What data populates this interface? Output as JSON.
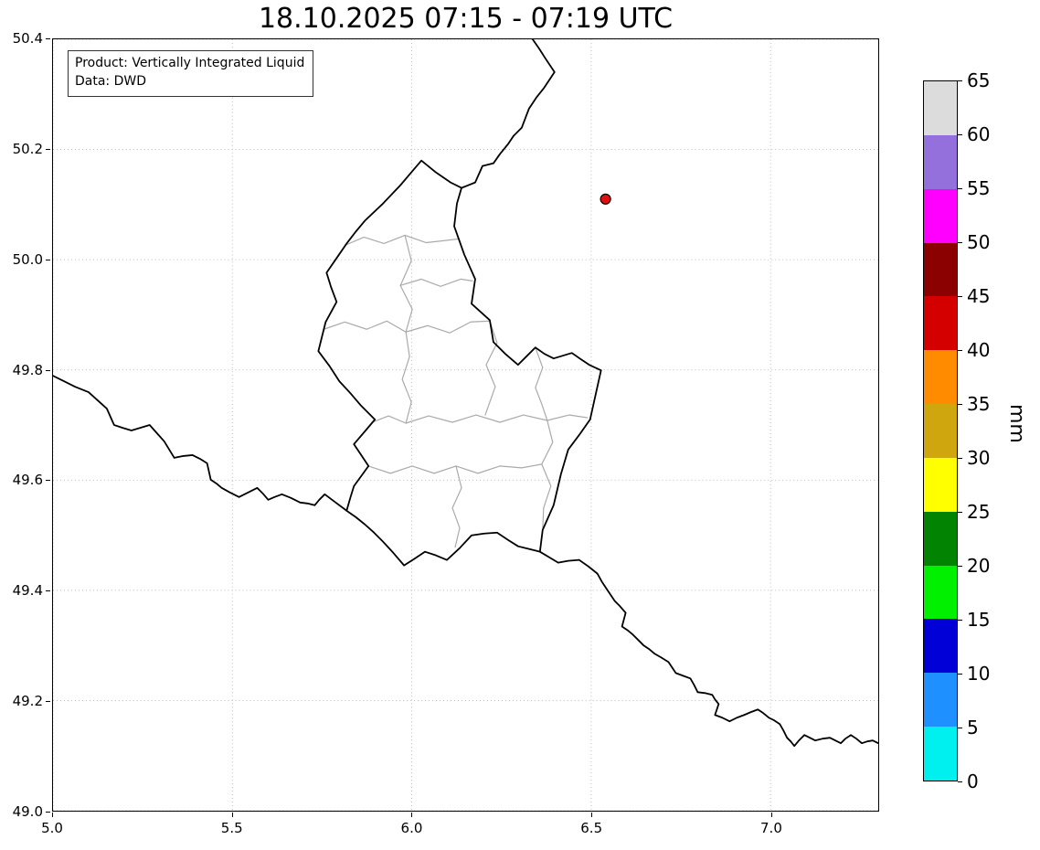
{
  "title": "18.10.2025 07:15 - 07:19 UTC",
  "annotation": {
    "line1": "Product: Vertically Integrated Liquid",
    "line2": "Data: DWD"
  },
  "axes": {
    "xlim": [
      5.0,
      7.3
    ],
    "ylim": [
      49.0,
      50.4
    ],
    "x_ticks": [
      {
        "value": 5.0,
        "label": "5.0"
      },
      {
        "value": 5.5,
        "label": "5.5"
      },
      {
        "value": 6.0,
        "label": "6.0"
      },
      {
        "value": 6.5,
        "label": "6.5"
      },
      {
        "value": 7.0,
        "label": "7.0"
      }
    ],
    "y_ticks": [
      {
        "value": 50.4,
        "label": "50.4"
      },
      {
        "value": 50.2,
        "label": "50.2"
      },
      {
        "value": 50.0,
        "label": "50.0"
      },
      {
        "value": 49.8,
        "label": "49.8"
      },
      {
        "value": 49.6,
        "label": "49.6"
      },
      {
        "value": 49.4,
        "label": "49.4"
      },
      {
        "value": 49.2,
        "label": "49.2"
      },
      {
        "value": 49.0,
        "label": "49.0"
      }
    ]
  },
  "marker": {
    "lon": 6.54,
    "lat": 50.11,
    "color": "#e01010"
  },
  "colorbar": {
    "label": "mm",
    "tick_labels": [
      "0",
      "5",
      "10",
      "15",
      "20",
      "25",
      "30",
      "35",
      "40",
      "45",
      "50",
      "55",
      "60",
      "65"
    ],
    "colors_bottom_to_top": [
      "#00efef",
      "#1e90ff",
      "#0000d7",
      "#00f000",
      "#028402",
      "#ffff00",
      "#cfa60e",
      "#ff8c00",
      "#d40000",
      "#8b0000",
      "#ff00ff",
      "#9370db",
      "#dcdcdc"
    ]
  }
}
